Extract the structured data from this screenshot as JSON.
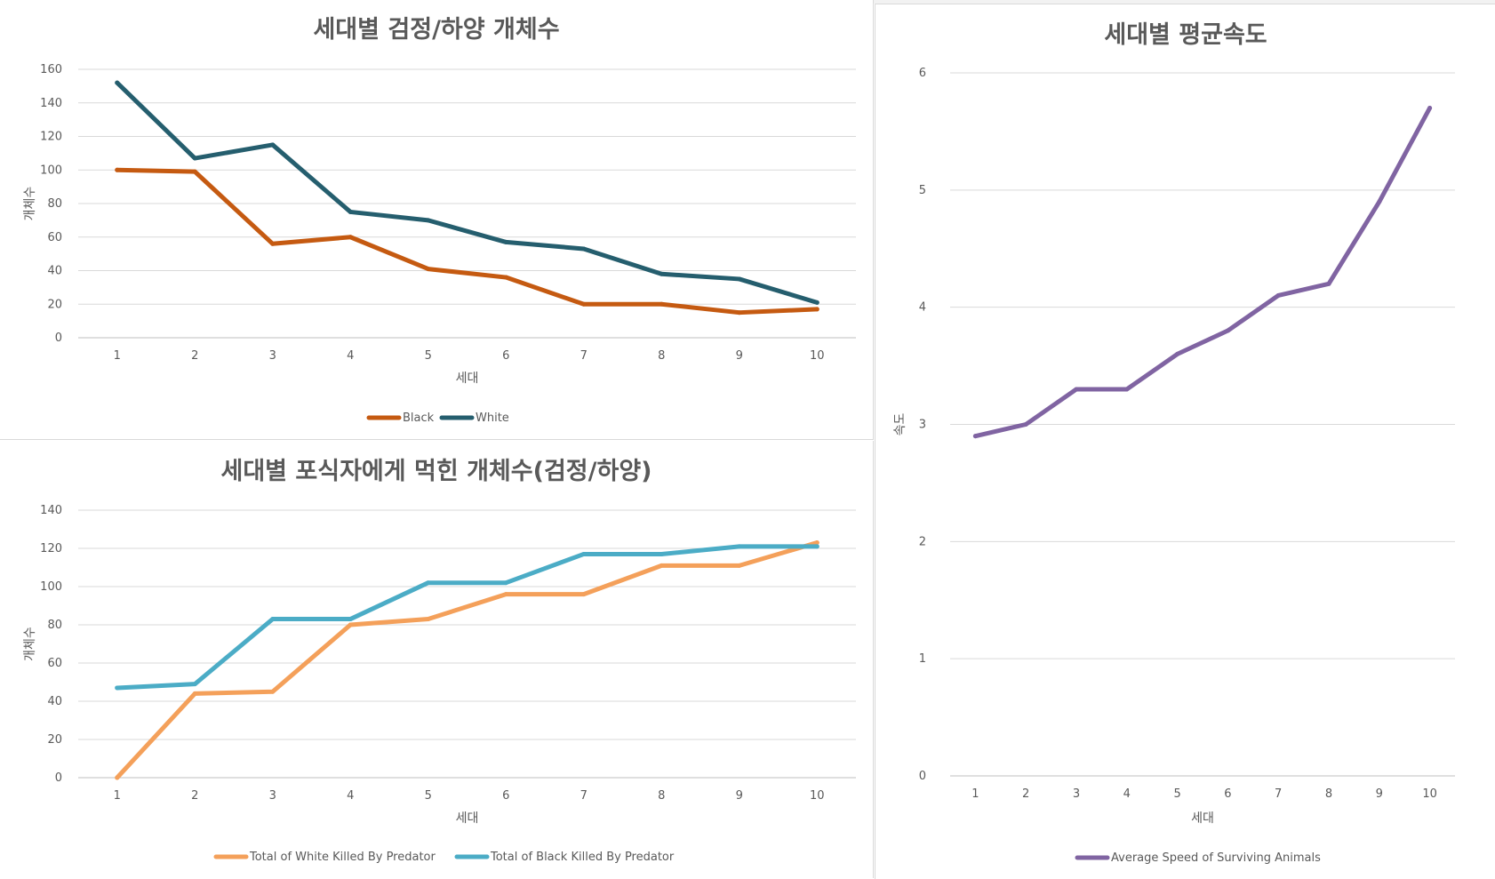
{
  "chart_data": [
    {
      "type": "line",
      "title": "세대별 검정/하양 개체수",
      "xlabel": "세대",
      "ylabel": "개체수",
      "categories": [
        "1",
        "2",
        "3",
        "4",
        "5",
        "6",
        "7",
        "8",
        "9",
        "10"
      ],
      "yticks": [
        "0",
        "20",
        "40",
        "60",
        "80",
        "100",
        "120",
        "140",
        "160"
      ],
      "ylim": [
        0,
        160
      ],
      "grid": true,
      "legend": "bottom",
      "series": [
        {
          "name": "Black",
          "color": "#c55a11",
          "values": [
            100,
            99,
            56,
            60,
            41,
            36,
            20,
            20,
            15,
            17
          ]
        },
        {
          "name": "White",
          "color": "#255e6e",
          "values": [
            152,
            107,
            115,
            75,
            70,
            57,
            53,
            38,
            35,
            21
          ]
        }
      ]
    },
    {
      "type": "line",
      "title": "세대별 포식자에게 먹힌 개체수(검정/하양)",
      "xlabel": "세대",
      "ylabel": "개체수",
      "categories": [
        "1",
        "2",
        "3",
        "4",
        "5",
        "6",
        "7",
        "8",
        "9",
        "10"
      ],
      "yticks": [
        "0",
        "20",
        "40",
        "60",
        "80",
        "100",
        "120",
        "140"
      ],
      "ylim": [
        0,
        140
      ],
      "grid": true,
      "legend": "bottom",
      "series": [
        {
          "name": "Total of White Killed By Predator",
          "color": "#f4a05a",
          "values": [
            0,
            44,
            45,
            80,
            83,
            96,
            96,
            111,
            111,
            123
          ]
        },
        {
          "name": "Total of Black Killed By Predator",
          "color": "#4bacc6",
          "values": [
            47,
            49,
            83,
            83,
            102,
            102,
            117,
            117,
            121,
            121
          ]
        }
      ]
    },
    {
      "type": "line",
      "title": "세대별 평균속도",
      "xlabel": "세대",
      "ylabel": "속도",
      "categories": [
        "1",
        "2",
        "3",
        "4",
        "5",
        "6",
        "7",
        "8",
        "9",
        "10"
      ],
      "yticks": [
        "0",
        "1",
        "2",
        "3",
        "4",
        "5",
        "6"
      ],
      "ylim": [
        0,
        6
      ],
      "grid": true,
      "legend": "bottom",
      "series": [
        {
          "name": "Average Speed of Surviving Animals",
          "color": "#8064a2",
          "values": [
            2.9,
            3.0,
            3.3,
            3.3,
            3.6,
            3.8,
            4.1,
            4.2,
            4.9,
            5.7
          ]
        }
      ]
    }
  ]
}
